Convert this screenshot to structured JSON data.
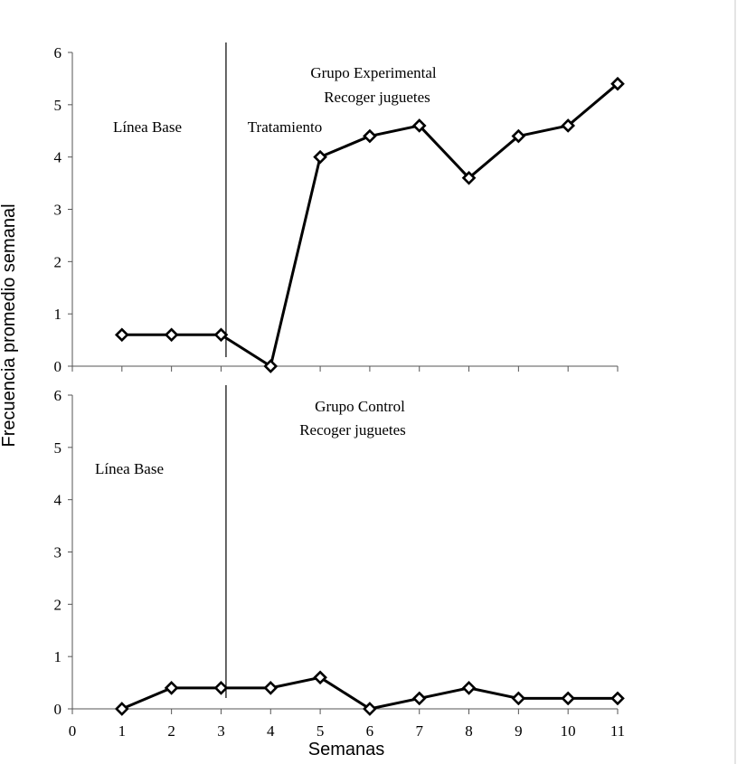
{
  "chart_data": [
    {
      "type": "line",
      "panel": "top",
      "x": [
        1,
        2,
        3,
        4,
        5,
        6,
        7,
        8,
        9,
        10,
        11
      ],
      "values": [
        0.6,
        0.6,
        0.6,
        0,
        4.0,
        4.4,
        4.6,
        3.6,
        4.4,
        4.6,
        5.4
      ],
      "ylim": [
        0,
        6
      ],
      "yticks": [
        "0",
        "1",
        "2",
        "3",
        "4",
        "5",
        "6"
      ],
      "xlim": [
        0,
        11
      ],
      "phase_change_after_x": 3.1,
      "annotations": {
        "title_line1": "Grupo Experimental",
        "title_line2": "Recoger  juguetes",
        "baseline_label": "Línea Base",
        "treatment_label": "Tratamiento"
      }
    },
    {
      "type": "line",
      "panel": "bottom",
      "x": [
        1,
        2,
        3,
        4,
        5,
        6,
        7,
        8,
        9,
        10,
        11
      ],
      "values": [
        0,
        0.4,
        0.4,
        0.4,
        0.6,
        0,
        0.2,
        0.4,
        0.2,
        0.2,
        0.2
      ],
      "ylim": [
        0,
        6
      ],
      "yticks": [
        "0",
        "1",
        "2",
        "3",
        "4",
        "5",
        "6"
      ],
      "xlim": [
        0,
        11
      ],
      "xticks": [
        "0",
        "1",
        "2",
        "3",
        "4",
        "5",
        "6",
        "7",
        "8",
        "9",
        "10",
        "11"
      ],
      "phase_change_after_x": 3.1,
      "annotations": {
        "title_line1": "Grupo Control",
        "title_line2": "Recoger  juguetes",
        "baseline_label": "Línea Base"
      }
    }
  ],
  "axes": {
    "ylabel": "Frecuencia promedio semanal",
    "xlabel": "Semanas"
  },
  "colors": {
    "line": "#000000",
    "marker_fill": "#ffffff"
  }
}
